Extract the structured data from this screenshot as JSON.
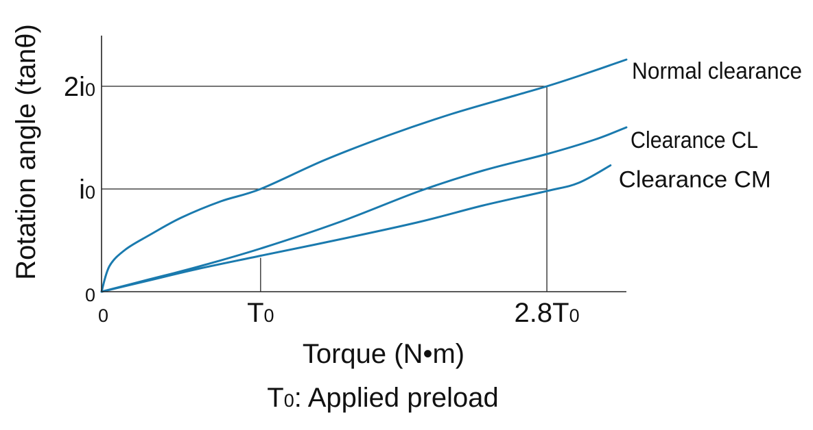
{
  "chart_data": {
    "type": "line",
    "xlabel": "Torque (N•m)",
    "ylabel": "Rotation angle (tanθ)",
    "caption": "T0: Applied preload",
    "x_unit": "T0",
    "y_unit": "i0",
    "xlim": [
      0,
      3.3
    ],
    "ylim": [
      0,
      2.5
    ],
    "x_ticks": [
      {
        "value": 0,
        "label": "0"
      },
      {
        "value": 1,
        "label": "T0"
      },
      {
        "value": 2.8,
        "label": "2.8T0"
      }
    ],
    "y_ticks": [
      {
        "value": 0,
        "label": "0"
      },
      {
        "value": 1,
        "label": "i0"
      },
      {
        "value": 2,
        "label": "2i0"
      }
    ],
    "reference_lines": [
      {
        "orientation": "horizontal",
        "y": 2,
        "x_from": 0,
        "x_to": 2.8
      },
      {
        "orientation": "horizontal",
        "y": 1,
        "x_from": 0,
        "x_to": 2.8
      },
      {
        "orientation": "vertical",
        "x": 2.8,
        "y_from": 0,
        "y_to": 2
      },
      {
        "orientation": "vertical",
        "x": 1,
        "y_from": 0,
        "y_to": 0.33
      }
    ],
    "series": [
      {
        "name": "Normal clearance",
        "color": "#1a7aae",
        "x": [
          0,
          0.05,
          0.15,
          0.3,
          0.5,
          0.75,
          1.0,
          1.4,
          1.8,
          2.2,
          2.6,
          2.8,
          3.0,
          3.3
        ],
        "y": [
          0,
          0.25,
          0.41,
          0.55,
          0.72,
          0.88,
          1.0,
          1.28,
          1.52,
          1.73,
          1.91,
          2.0,
          2.1,
          2.26
        ]
      },
      {
        "name": "Clearance CL",
        "color": "#1a7aae",
        "x": [
          0,
          0.3,
          0.6,
          1.0,
          1.5,
          2.0,
          2.4,
          2.8,
          3.1,
          3.3
        ],
        "y": [
          0,
          0.12,
          0.24,
          0.42,
          0.68,
          0.98,
          1.18,
          1.34,
          1.48,
          1.6
        ]
      },
      {
        "name": "Clearance CM",
        "color": "#1a7aae",
        "x": [
          0,
          0.3,
          0.6,
          1.0,
          1.5,
          2.0,
          2.4,
          2.8,
          3.0,
          3.2
        ],
        "y": [
          0,
          0.11,
          0.22,
          0.35,
          0.51,
          0.68,
          0.84,
          0.98,
          1.06,
          1.23
        ]
      }
    ]
  }
}
